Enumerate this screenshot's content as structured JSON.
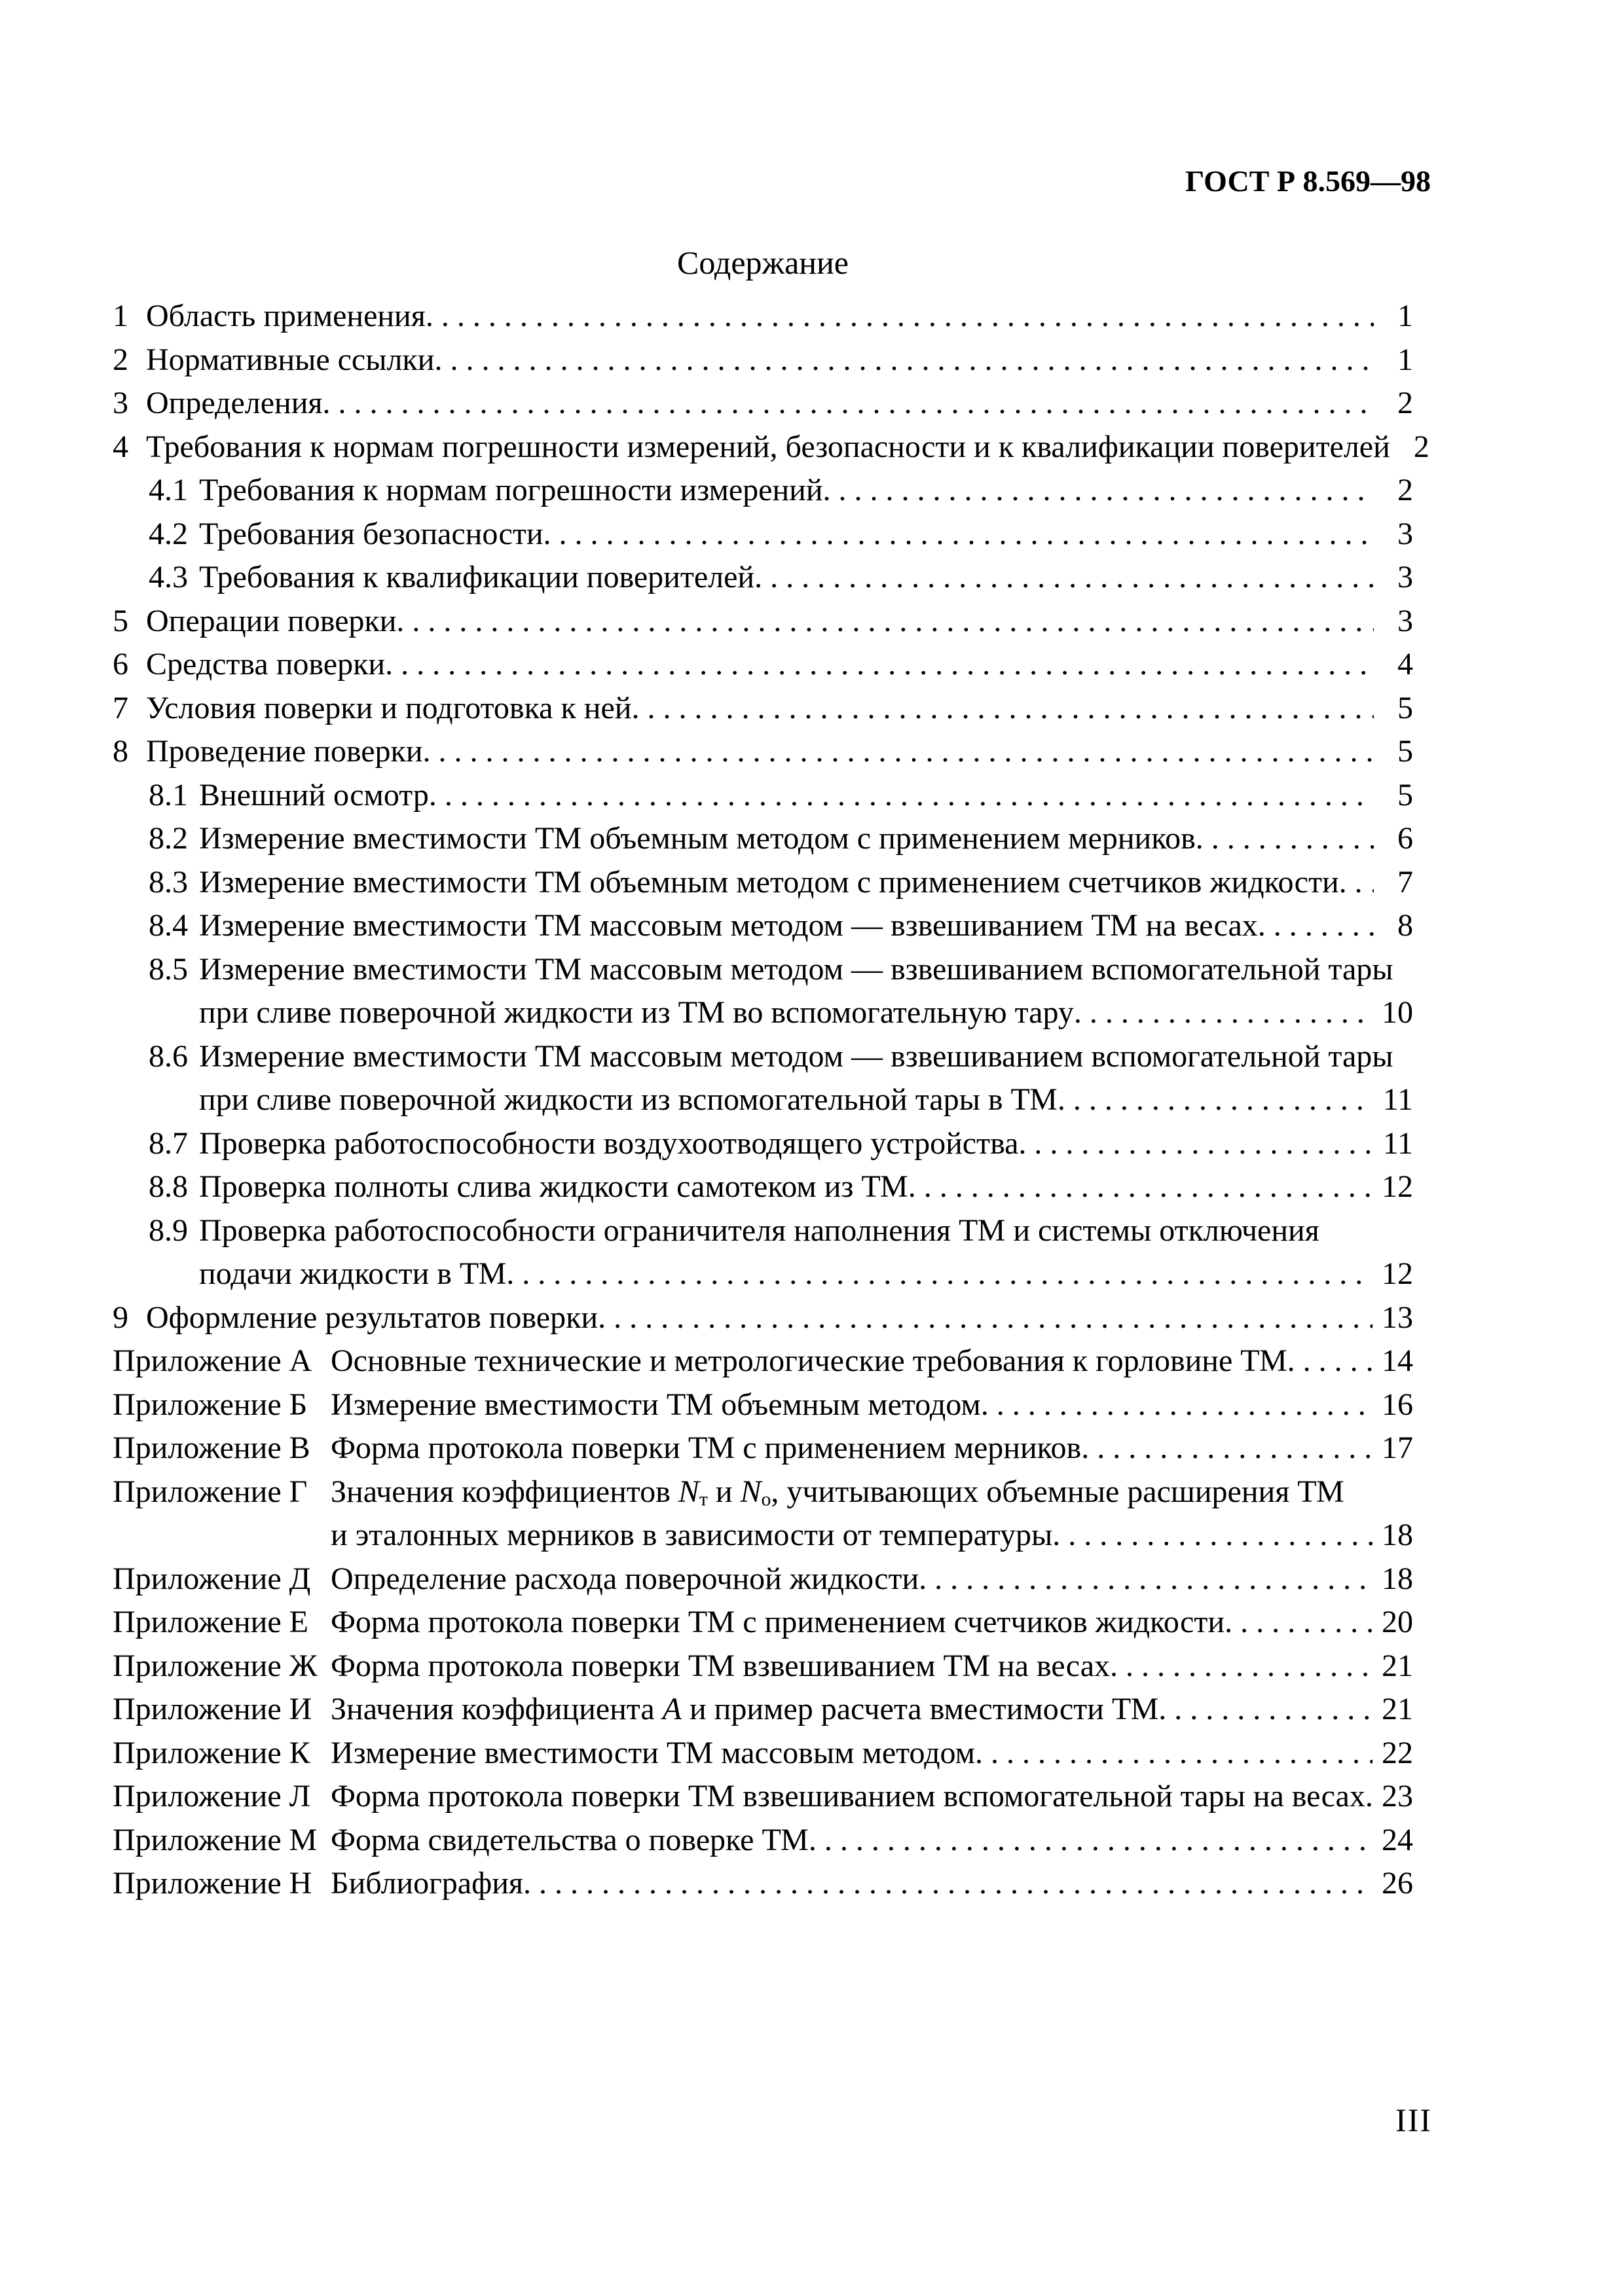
{
  "colors": {
    "paper": "#ffffff",
    "ink": "#000000"
  },
  "header": {
    "standard_code": "ГОСТ Р 8.569—98"
  },
  "footer": {
    "sheet_number": "III"
  },
  "toc": {
    "title": "Содержание",
    "entries": [
      {
        "level": "l1",
        "marker": "1",
        "label": "Область применения",
        "page": "1"
      },
      {
        "level": "l1",
        "marker": "2",
        "label": "Нормативные ссылки",
        "page": "1"
      },
      {
        "level": "l1",
        "marker": "3",
        "label": "Определения",
        "page": "2"
      },
      {
        "level": "l1",
        "marker": "4",
        "label": "Требования к нормам погрешности измерений, безопасности и к квалификации поверителей",
        "page": "2"
      },
      {
        "level": "l2",
        "marker": "4.1",
        "label": "Требования к нормам погрешности измерений",
        "page": "2"
      },
      {
        "level": "l2",
        "marker": "4.2",
        "label": "Требования безопасности",
        "page": "3"
      },
      {
        "level": "l2",
        "marker": "4.3",
        "label": "Требования к квалификации поверителей",
        "page": "3"
      },
      {
        "level": "l1",
        "marker": "5",
        "label": "Операции поверки",
        "page": "3"
      },
      {
        "level": "l1",
        "marker": "6",
        "label": "Средства поверки",
        "page": "4"
      },
      {
        "level": "l1",
        "marker": "7",
        "label": "Условия поверки и подготовка к ней",
        "page": "5"
      },
      {
        "level": "l1",
        "marker": "8",
        "label": "Проведение поверки",
        "page": "5"
      },
      {
        "level": "l2",
        "marker": "8.1",
        "label": "Внешний осмотр",
        "page": "5"
      },
      {
        "level": "l2",
        "marker": "8.2",
        "label": "Измерение вместимости ТМ объемным методом с применением мерников",
        "page": "6"
      },
      {
        "level": "l2",
        "marker": "8.3",
        "label": "Измерение вместимости ТМ объемным методом с применением счетчиков жидкости",
        "page": "7"
      },
      {
        "level": "l2",
        "marker": "8.4",
        "label": "Измерение вместимости ТМ массовым методом — взвешиванием ТМ на весах",
        "page": "8"
      },
      {
        "level": "l2",
        "marker": "8.5",
        "label": "Измерение вместимости ТМ массовым методом — взвешиванием вспомогательной тары",
        "page": null
      },
      {
        "level": "cont2",
        "marker": null,
        "label": "при сливе поверочной жидкости из ТМ во вспомогательную тару",
        "page": "10"
      },
      {
        "level": "l2",
        "marker": "8.6",
        "label": "Измерение вместимости ТМ массовым методом — взвешиванием вспомогательной тары",
        "page": null
      },
      {
        "level": "cont2",
        "marker": null,
        "label": "при сливе поверочной жидкости из вспомогательной тары в ТМ",
        "page": "11"
      },
      {
        "level": "l2",
        "marker": "8.7",
        "label": "Проверка работоспособности воздухоотводящего устройства",
        "page": "11"
      },
      {
        "level": "l2",
        "marker": "8.8",
        "label": "Проверка полноты слива жидкости самотеком из ТМ",
        "page": "12"
      },
      {
        "level": "l2",
        "marker": "8.9",
        "label": "Проверка работоспособности ограничителя наполнения ТМ и системы отключения",
        "page": null
      },
      {
        "level": "cont2",
        "marker": null,
        "label": "подачи жидкости в ТМ",
        "page": "12"
      },
      {
        "level": "l1",
        "marker": "9",
        "label": "Оформление результатов поверки",
        "page": "13"
      },
      {
        "level": "app",
        "marker": "Приложение А",
        "label": "Основные технические и метрологические требования к горловине ТМ",
        "page": "14"
      },
      {
        "level": "app",
        "marker": "Приложение Б",
        "label": "Измерение вместимости ТМ объемным методом",
        "page": "16"
      },
      {
        "level": "app",
        "marker": "Приложение В",
        "label": "Форма протокола поверки ТМ с применением мерников",
        "page": "17"
      },
      {
        "level": "app",
        "marker": "Приложение Г",
        "segments": [
          {
            "text": "Значения коэффициентов "
          },
          {
            "text": "N",
            "style": "italic"
          },
          {
            "text": "т",
            "style": "sub"
          },
          {
            "text": " и "
          },
          {
            "text": "N",
            "style": "italic"
          },
          {
            "text": "о",
            "style": "sub"
          },
          {
            "text": ", учитывающих объемные расширения ТМ"
          }
        ],
        "page": null
      },
      {
        "level": "contApp",
        "marker": null,
        "label": "и эталонных мерников в зависимости от температуры",
        "page": "18"
      },
      {
        "level": "app",
        "marker": "Приложение Д",
        "label": "Определение расхода поверочной жидкости",
        "page": "18"
      },
      {
        "level": "app",
        "marker": "Приложение Е",
        "label": "Форма протокола поверки ТМ с применением счетчиков жидкости",
        "page": "20"
      },
      {
        "level": "app",
        "marker": "Приложение Ж",
        "label": "Форма протокола поверки ТМ взвешиванием ТМ на весах",
        "page": "21"
      },
      {
        "level": "app",
        "marker": "Приложение И",
        "segments": [
          {
            "text": "Значения коэффициента "
          },
          {
            "text": "А",
            "style": "italic"
          },
          {
            "text": " и пример расчета вместимости ТМ"
          }
        ],
        "page": "21"
      },
      {
        "level": "app",
        "marker": "Приложение К",
        "label": "Измерение вместимости ТМ массовым методом",
        "page": "22"
      },
      {
        "level": "app",
        "marker": "Приложение Л",
        "label": "Форма протокола поверки ТМ взвешиванием вспомогательной тары на весах",
        "page": "23"
      },
      {
        "level": "app",
        "marker": "Приложение М",
        "label": "Форма свидетельства о поверке ТМ",
        "page": "24"
      },
      {
        "level": "app",
        "marker": "Приложение Н",
        "label": "Библиография",
        "page": "26"
      }
    ]
  }
}
